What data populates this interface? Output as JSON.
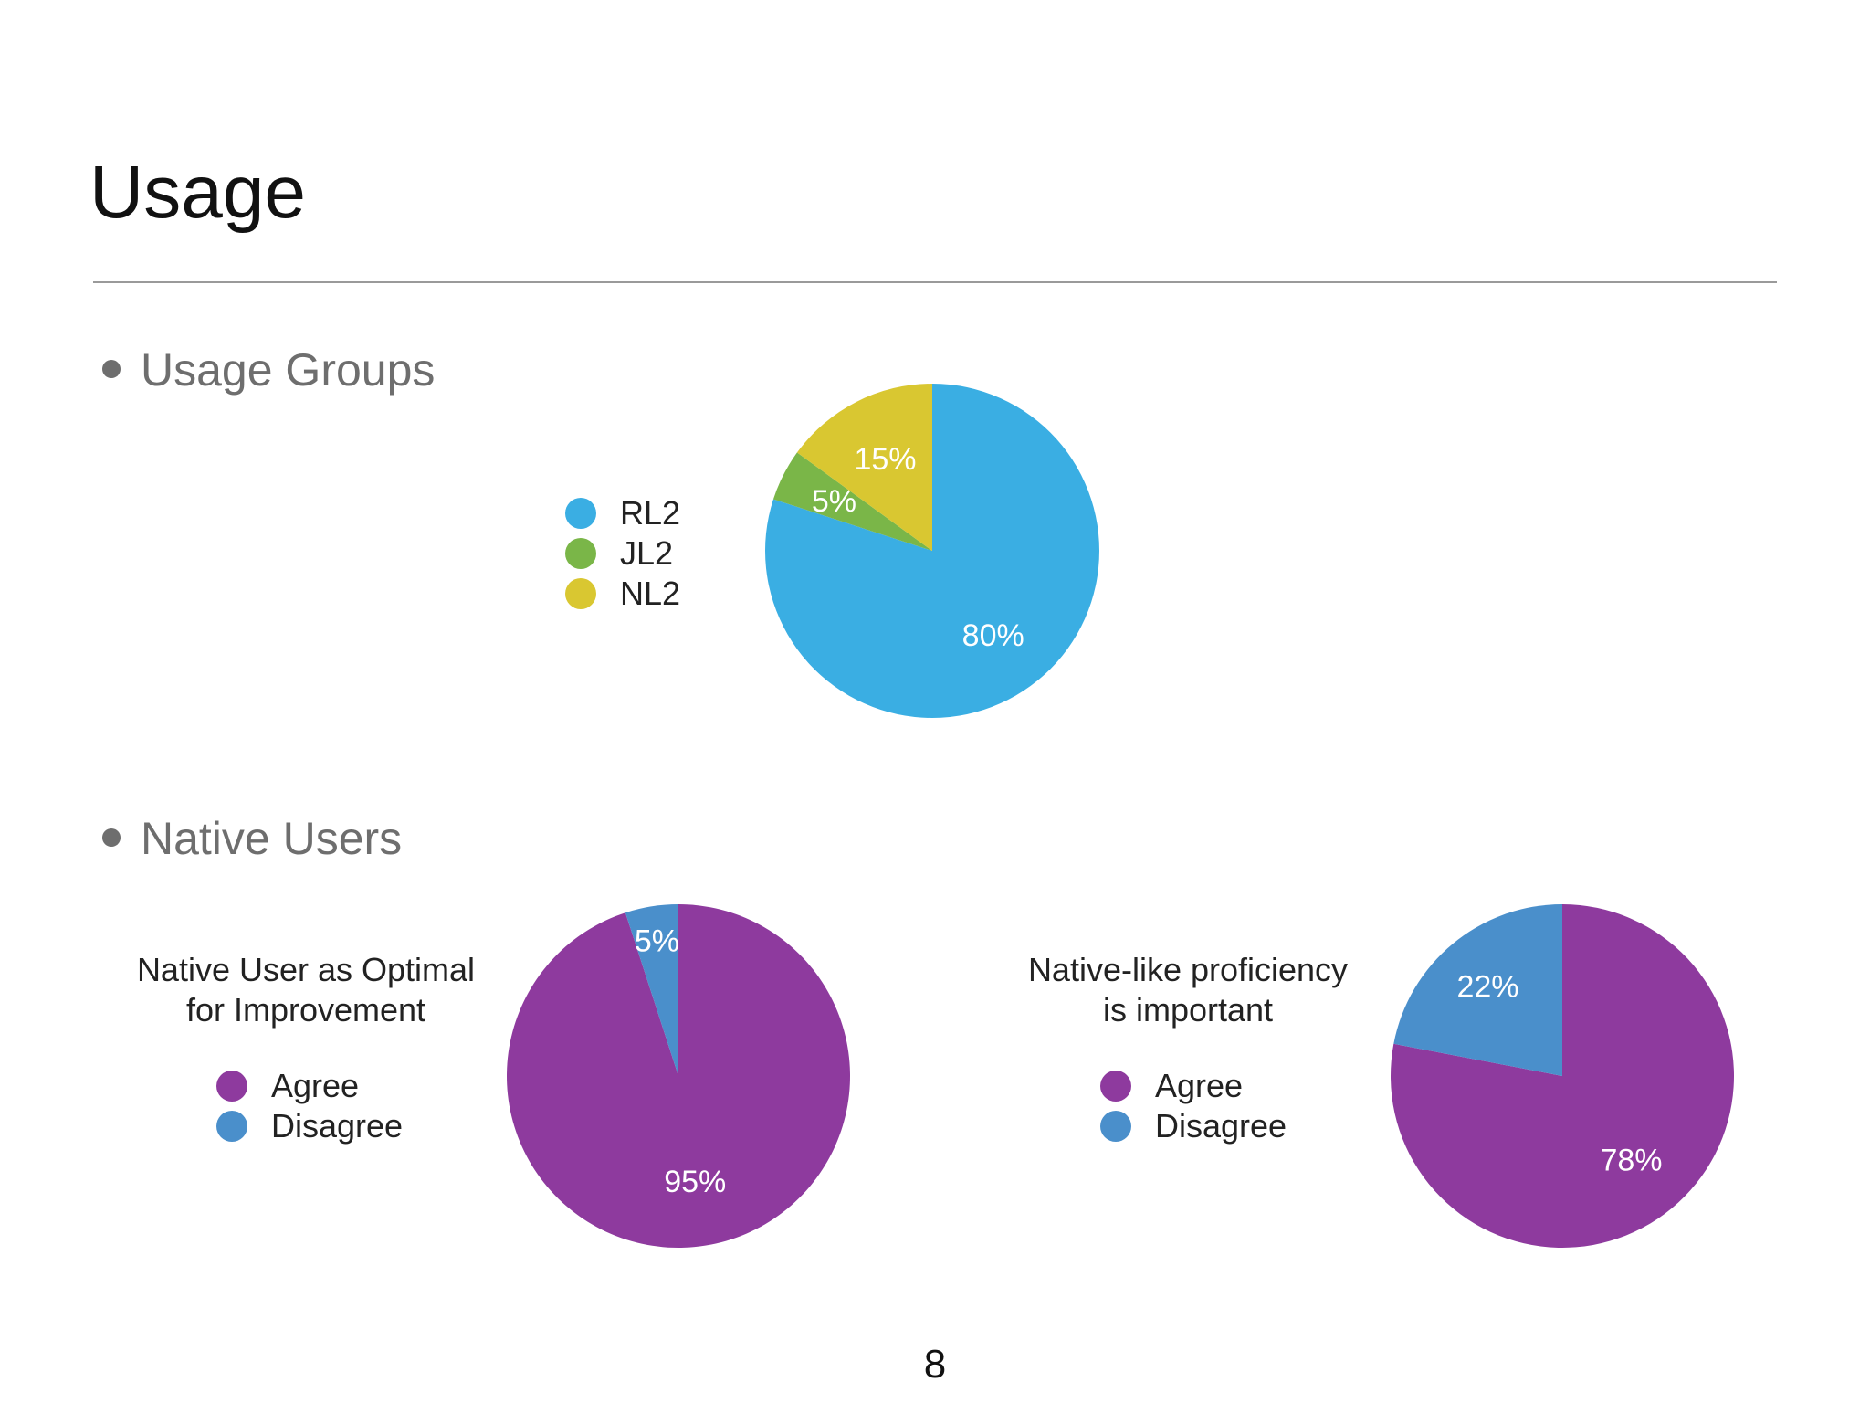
{
  "slide": {
    "title": "Usage",
    "bullets": [
      "Usage Groups",
      "Native Users"
    ],
    "page_number": "8"
  },
  "chart_data": [
    {
      "type": "pie",
      "title": "",
      "categories": [
        "RL2",
        "JL2",
        "NL2"
      ],
      "values": [
        80,
        5,
        15
      ],
      "labels": [
        "80%",
        "5%",
        "15%"
      ],
      "colors": [
        "#3aaee3",
        "#7ab648",
        "#d9c731"
      ],
      "legend": "left"
    },
    {
      "type": "pie",
      "title": "Native User as Optimal for Improvement",
      "title_lines": [
        "Native User as Optimal",
        "for Improvement"
      ],
      "categories": [
        "Agree",
        "Disagree"
      ],
      "values": [
        95,
        5
      ],
      "labels": [
        "95%",
        "5%"
      ],
      "colors": [
        "#8e3a9e",
        "#4a8fcb"
      ],
      "legend": "left"
    },
    {
      "type": "pie",
      "title": "Native-like proficiency is important",
      "title_lines": [
        "Native-like proficiency",
        "is important"
      ],
      "categories": [
        "Agree",
        "Disagree"
      ],
      "values": [
        78,
        22
      ],
      "labels": [
        "78%",
        "22%"
      ],
      "colors": [
        "#8e3a9e",
        "#4a8fcb"
      ],
      "legend": "left"
    }
  ]
}
